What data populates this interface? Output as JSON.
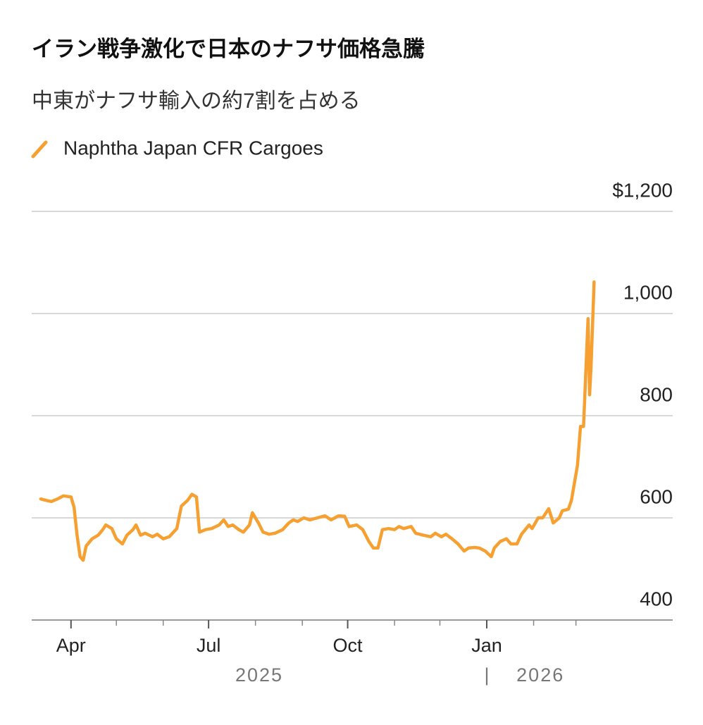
{
  "chart_data": {
    "type": "line",
    "title": "イラン戦争激化で日本のナフサ価格急騰",
    "subtitle": "中東がナフサ輸入の約7割を占める",
    "series": [
      {
        "name": "Naphtha Japan CFR Cargoes",
        "color": "#f5a030",
        "x": [
          "2025-03-12",
          "2025-03-16",
          "2025-03-19",
          "2025-03-23",
          "2025-03-27",
          "2025-04-01",
          "2025-04-03",
          "2025-04-05",
          "2025-04-07",
          "2025-04-09",
          "2025-04-11",
          "2025-04-15",
          "2025-04-19",
          "2025-04-22",
          "2025-04-24",
          "2025-04-28",
          "2025-05-01",
          "2025-05-05",
          "2025-05-08",
          "2025-05-12",
          "2025-05-14",
          "2025-05-17",
          "2025-05-20",
          "2025-05-25",
          "2025-05-28",
          "2025-06-01",
          "2025-06-05",
          "2025-06-10",
          "2025-06-13",
          "2025-06-17",
          "2025-06-20",
          "2025-06-23",
          "2025-06-25",
          "2025-06-29",
          "2025-07-03",
          "2025-07-08",
          "2025-07-11",
          "2025-07-14",
          "2025-07-17",
          "2025-07-21",
          "2025-07-24",
          "2025-07-28",
          "2025-07-30",
          "2025-08-03",
          "2025-08-06",
          "2025-08-10",
          "2025-08-14",
          "2025-08-19",
          "2025-08-23",
          "2025-08-26",
          "2025-08-29",
          "2025-09-02",
          "2025-09-06",
          "2025-09-11",
          "2025-09-16",
          "2025-09-20",
          "2025-09-25",
          "2025-09-29",
          "2025-10-02",
          "2025-10-07",
          "2025-10-11",
          "2025-10-15",
          "2025-10-18",
          "2025-10-21",
          "2025-10-24",
          "2025-10-28",
          "2025-11-01",
          "2025-11-04",
          "2025-11-07",
          "2025-11-12",
          "2025-11-15",
          "2025-11-20",
          "2025-11-25",
          "2025-11-28",
          "2025-12-02",
          "2025-12-05",
          "2025-12-09",
          "2025-12-13",
          "2025-12-17",
          "2025-12-20",
          "2025-12-24",
          "2025-12-27",
          "2025-12-31",
          "2026-01-04",
          "2026-01-06",
          "2026-01-10",
          "2026-01-14",
          "2026-01-17",
          "2026-01-21",
          "2026-01-24",
          "2026-01-29",
          "2026-01-31",
          "2026-02-04",
          "2026-02-07",
          "2026-02-11",
          "2026-02-14",
          "2026-02-18",
          "2026-02-20",
          "2026-02-24",
          "2026-02-26",
          "2026-03-02",
          "2026-03-04",
          "2026-03-06",
          "2026-03-07",
          "2026-03-09",
          "2026-03-10",
          "2026-03-11",
          "2026-03-13"
        ],
        "values": [
          637,
          634,
          632,
          637,
          643,
          641,
          621,
          566,
          524,
          517,
          545,
          559,
          566,
          577,
          586,
          579,
          559,
          549,
          566,
          577,
          586,
          566,
          570,
          563,
          568,
          559,
          563,
          579,
          623,
          634,
          646,
          641,
          572,
          577,
          579,
          586,
          596,
          583,
          586,
          577,
          572,
          586,
          610,
          590,
          572,
          568,
          570,
          577,
          590,
          596,
          593,
          600,
          596,
          600,
          604,
          596,
          604,
          603,
          583,
          586,
          577,
          554,
          541,
          541,
          577,
          579,
          577,
          583,
          579,
          583,
          570,
          566,
          563,
          570,
          563,
          568,
          559,
          549,
          535,
          541,
          542,
          541,
          535,
          524,
          541,
          554,
          559,
          549,
          549,
          568,
          586,
          579,
          600,
          600,
          618,
          590,
          600,
          614,
          617,
          634,
          703,
          779,
          779,
          848,
          990,
          841,
          897,
          1062
        ]
      }
    ],
    "xlim": [
      "2025-03-06",
      "2026-05-04"
    ],
    "xticks": [
      {
        "value": "2025-04-01",
        "label": "Apr"
      },
      {
        "value": "2025-07-01",
        "label": "Jul"
      },
      {
        "value": "2025-10-01",
        "label": "Oct"
      },
      {
        "value": "2026-01-01",
        "label": "Jan"
      }
    ],
    "xminor_ticks": [
      "2025-05-01",
      "2025-06-01",
      "2025-08-01",
      "2025-09-01",
      "2025-11-01",
      "2025-12-01",
      "2026-02-01",
      "2026-03-01"
    ],
    "years": [
      "2025",
      "2026"
    ],
    "year_separator": "|",
    "ylim": [
      400,
      1200
    ],
    "yticks": [
      {
        "value": 1200,
        "label": "$1,200"
      },
      {
        "value": 1000,
        "label": "1,000"
      },
      800,
      600,
      400
    ],
    "grid": true
  }
}
